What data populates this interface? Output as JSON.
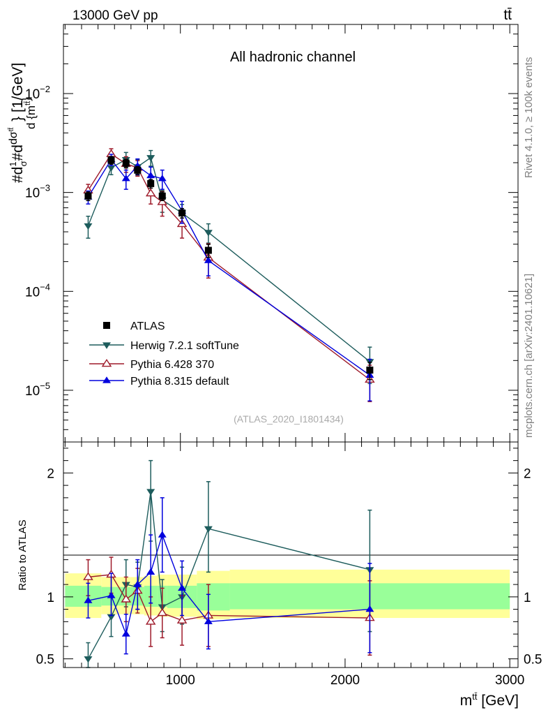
{
  "header": {
    "energy": "13000 GeV pp",
    "process": "tt̄",
    "rivet": "Rivet 4.1.0, ≥ 100k events",
    "source": "mcplots.cern.ch [arXiv:2401.10621]"
  },
  "chart_data": [
    {
      "type": "scatter",
      "panel": "main",
      "title": "All hadronic channel",
      "analysis_tag": "(ATLAS_2020_I1801434)",
      "ylabel": "#d1/σ#ddσ^{tt̄}/d{m^{tt̄}} [1/GeV]",
      "yscale": "log",
      "ylim": [
        3e-06,
        0.05
      ],
      "xlim": [
        290,
        3050
      ],
      "y_ticks": [
        {
          "value": 1e-05,
          "base": "10",
          "exp": "−5"
        },
        {
          "value": 0.0001,
          "base": "10",
          "exp": "−4"
        },
        {
          "value": 0.001,
          "base": "10",
          "exp": "−3"
        },
        {
          "value": 0.01,
          "base": "10",
          "exp": "−2"
        }
      ],
      "bin_edges": [
        300,
        520,
        640,
        700,
        780,
        860,
        920,
        1100,
        1300,
        3000
      ],
      "series": [
        {
          "name": "ATLAS",
          "color": "#000000",
          "marker": "square",
          "x": [
            440,
            580,
            670,
            740,
            820,
            890,
            1010,
            1170,
            2150
          ],
          "y": [
            0.00092,
            0.00212,
            0.00198,
            0.00168,
            0.00123,
            0.00092,
            0.00062,
            0.00026,
            1.6e-05
          ],
          "err": [
            0.1,
            0.09,
            0.09,
            0.09,
            0.1,
            0.1,
            0.11,
            0.15,
            0.2
          ]
        },
        {
          "name": "Herwig 7.2.1 softTune",
          "color": "#1d5c5c",
          "marker": "triangle-down",
          "x": [
            440,
            580,
            670,
            740,
            820,
            890,
            1010,
            1170,
            2150
          ],
          "y": [
            0.00046,
            0.00178,
            0.00215,
            0.00182,
            0.00225,
            0.00084,
            0.00062,
            0.000395,
            1.95e-05
          ],
          "err": [
            0.25,
            0.15,
            0.18,
            0.18,
            0.18,
            0.25,
            0.22,
            0.22,
            0.4
          ]
        },
        {
          "name": "Pythia 6.428 370",
          "color": "#9e1a2a",
          "marker": "triangle-open",
          "x": [
            440,
            580,
            670,
            740,
            820,
            890,
            1010,
            1170,
            2150
          ],
          "y": [
            0.00105,
            0.00245,
            0.00195,
            0.00178,
            0.00098,
            0.0008,
            0.00048,
            0.00022,
            1.28e-05
          ],
          "err": [
            0.15,
            0.13,
            0.18,
            0.18,
            0.22,
            0.28,
            0.28,
            0.38,
            0.4
          ]
        },
        {
          "name": "Pythia 8.315 default",
          "color": "#0000dd",
          "marker": "triangle-up",
          "x": [
            440,
            580,
            670,
            740,
            820,
            890,
            1010,
            1170,
            2150
          ],
          "y": [
            0.0009,
            0.00215,
            0.00138,
            0.00185,
            0.00148,
            0.00138,
            0.00065,
            0.000205,
            1.42e-05
          ],
          "err": [
            0.15,
            0.13,
            0.22,
            0.18,
            0.22,
            0.22,
            0.25,
            0.3,
            0.45
          ]
        }
      ]
    },
    {
      "type": "scatter",
      "panel": "ratio",
      "ylabel": "Ratio to ATLAS",
      "xlabel": "m^{tt̄} [GeV]",
      "ylim": [
        0.43,
        2.25
      ],
      "xlim": [
        290,
        3050
      ],
      "y_ticks": [
        {
          "value": 0.5,
          "label": "0.5"
        },
        {
          "value": 1,
          "label": "1"
        },
        {
          "value": 2,
          "label": "2"
        }
      ],
      "x_ticks": [
        {
          "value": 1000,
          "label": "1000"
        },
        {
          "value": 2000,
          "label": "2000"
        },
        {
          "value": 3000,
          "label": "3000"
        }
      ],
      "bands": {
        "yellow_color": "#ffff99",
        "green_color": "#99ff99",
        "bins": [
          {
            "x0": 300,
            "x1": 520,
            "g": [
              0.92,
              1.09
            ],
            "yl": [
              0.83,
              1.19
            ]
          },
          {
            "x0": 520,
            "x1": 640,
            "g": [
              0.93,
              1.08
            ],
            "yl": [
              0.86,
              1.16
            ]
          },
          {
            "x0": 640,
            "x1": 700,
            "g": [
              0.93,
              1.08
            ],
            "yl": [
              0.86,
              1.16
            ]
          },
          {
            "x0": 700,
            "x1": 780,
            "g": [
              0.93,
              1.08
            ],
            "yl": [
              0.86,
              1.16
            ]
          },
          {
            "x0": 780,
            "x1": 860,
            "g": [
              0.92,
              1.09
            ],
            "yl": [
              0.85,
              1.17
            ]
          },
          {
            "x0": 860,
            "x1": 920,
            "g": [
              0.92,
              1.09
            ],
            "yl": [
              0.84,
              1.18
            ]
          },
          {
            "x0": 920,
            "x1": 1100,
            "g": [
              0.91,
              1.09
            ],
            "yl": [
              0.84,
              1.18
            ]
          },
          {
            "x0": 1100,
            "x1": 1300,
            "g": [
              0.89,
              1.11
            ],
            "yl": [
              0.82,
              1.21
            ]
          },
          {
            "x0": 1300,
            "x1": 3000,
            "g": [
              0.9,
              1.11
            ],
            "yl": [
              0.83,
              1.22
            ]
          }
        ]
      },
      "series": [
        {
          "name": "Herwig 7.2.1 softTune",
          "color": "#1d5c5c",
          "marker": "triangle-down",
          "x": [
            440,
            580,
            670,
            740,
            820,
            890,
            1010,
            1170,
            2150
          ],
          "y": [
            0.5,
            0.84,
            1.1,
            1.08,
            1.85,
            0.92,
            1.0,
            1.55,
            1.22
          ],
          "err_lo": [
            0.12,
            0.16,
            0.18,
            0.18,
            0.4,
            0.2,
            0.22,
            0.35,
            0.5
          ],
          "err_hi": [
            0.13,
            0.17,
            0.2,
            0.2,
            0.25,
            0.22,
            0.24,
            0.38,
            0.48
          ]
        },
        {
          "name": "Pythia 6.428 370",
          "color": "#9e1a2a",
          "marker": "triangle-open",
          "x": [
            440,
            580,
            670,
            740,
            820,
            890,
            1010,
            1170,
            2150
          ],
          "y": [
            1.16,
            1.18,
            0.98,
            1.05,
            0.8,
            0.87,
            0.81,
            0.85,
            0.83
          ],
          "err_lo": [
            0.15,
            0.15,
            0.18,
            0.18,
            0.2,
            0.2,
            0.2,
            0.25,
            0.3
          ],
          "err_hi": [
            0.14,
            0.14,
            0.18,
            0.18,
            0.2,
            0.2,
            0.2,
            0.25,
            0.3
          ]
        },
        {
          "name": "Pythia 8.315 default",
          "color": "#0000dd",
          "marker": "triangle-up",
          "x": [
            440,
            580,
            670,
            740,
            820,
            890,
            1010,
            1170,
            2150
          ],
          "y": [
            0.97,
            1.01,
            0.7,
            1.1,
            1.2,
            1.5,
            1.07,
            0.8,
            0.9
          ],
          "err_lo": [
            0.14,
            0.16,
            0.16,
            0.2,
            0.25,
            0.3,
            0.22,
            0.22,
            0.35
          ],
          "err_hi": [
            0.14,
            0.18,
            0.16,
            0.2,
            0.3,
            0.3,
            0.22,
            0.22,
            0.37
          ]
        }
      ]
    }
  ]
}
